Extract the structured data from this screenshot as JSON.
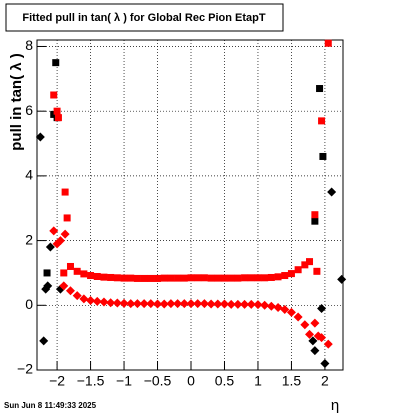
{
  "chart_data": {
    "type": "scatter",
    "title": "Fitted pull in tan( λ ) for Global Rec Pion EtapT",
    "y_label": "pull in tan( λ )",
    "x_label": "η",
    "timestamp": "Sun Jun  8 11:49:33 2025",
    "xlim": [
      -2.3,
      2.27
    ],
    "ylim": [
      -2,
      8.2
    ],
    "xticks": [
      {
        "value": -2,
        "label": "−2"
      },
      {
        "value": -1.5,
        "label": "−1.5"
      },
      {
        "value": -1,
        "label": "−1"
      },
      {
        "value": -0.5,
        "label": "−0.5"
      },
      0,
      0.5,
      1,
      1.5,
      2
    ],
    "yticks": [
      {
        "value": -2,
        "label": "−2"
      },
      0,
      2,
      4,
      6,
      8
    ],
    "grid": true,
    "series": [
      {
        "color": "#000000",
        "marker": "square",
        "x": [
          -2.15,
          -2.05,
          -2.02,
          -2.0,
          1.85,
          1.92,
          1.97
        ],
        "values": [
          1.0,
          5.9,
          7.5,
          5.8,
          2.6,
          6.7,
          4.6
        ]
      },
      {
        "color": "#000000",
        "marker": "diamond",
        "x": [
          -2.25,
          -2.2,
          -2.17,
          -2.14,
          -2.1,
          -1.95,
          1.82,
          1.85,
          1.95,
          2.0,
          2.1,
          2.25
        ],
        "values": [
          5.2,
          -1.1,
          0.5,
          0.6,
          1.8,
          0.5,
          -1.1,
          -1.4,
          -0.1,
          -1.8,
          3.5,
          0.8
        ]
      },
      {
        "color": "#ff0000",
        "marker": "square",
        "x": [
          -2.05,
          -2.0,
          -1.98,
          -1.88,
          -1.85,
          -1.9,
          -1.8,
          -1.7,
          -1.6,
          -1.5,
          -1.4,
          -1.3,
          -1.2,
          -1.1,
          -1.0,
          -0.9,
          -0.8,
          -0.7,
          -0.6,
          -0.5,
          -0.4,
          -0.3,
          -0.2,
          -0.1,
          0,
          0.1,
          0.2,
          0.3,
          0.4,
          0.5,
          0.6,
          0.7,
          0.8,
          0.9,
          1.0,
          1.1,
          1.2,
          1.3,
          1.4,
          1.5,
          1.6,
          1.7,
          1.77,
          1.85,
          1.88,
          1.95,
          2.05
        ],
        "values": [
          6.5,
          6.0,
          5.8,
          3.5,
          2.7,
          1.0,
          1.2,
          1.05,
          0.97,
          0.92,
          0.89,
          0.87,
          0.86,
          0.85,
          0.84,
          0.84,
          0.83,
          0.83,
          0.83,
          0.83,
          0.84,
          0.84,
          0.84,
          0.84,
          0.85,
          0.85,
          0.85,
          0.84,
          0.84,
          0.84,
          0.84,
          0.84,
          0.85,
          0.85,
          0.85,
          0.85,
          0.86,
          0.88,
          0.92,
          0.98,
          1.1,
          1.25,
          1.35,
          2.8,
          1.05,
          5.7,
          8.1
        ]
      },
      {
        "color": "#ff0000",
        "marker": "diamond",
        "x": [
          -2.05,
          -2.0,
          -1.95,
          -1.88,
          -1.9,
          -1.8,
          -1.7,
          -1.6,
          -1.5,
          -1.4,
          -1.3,
          -1.2,
          -1.1,
          -1.0,
          -0.9,
          -0.8,
          -0.7,
          -0.6,
          -0.5,
          -0.4,
          -0.3,
          -0.2,
          -0.1,
          0,
          0.1,
          0.2,
          0.3,
          0.4,
          0.5,
          0.6,
          0.7,
          0.8,
          0.9,
          1.0,
          1.1,
          1.2,
          1.3,
          1.4,
          1.5,
          1.6,
          1.7,
          1.77,
          1.85,
          1.9,
          1.95,
          2.05
        ],
        "values": [
          2.3,
          1.9,
          2.0,
          2.2,
          0.6,
          0.45,
          0.3,
          0.2,
          0.15,
          0.12,
          0.1,
          0.08,
          0.07,
          0.06,
          0.05,
          0.05,
          0.05,
          0.05,
          0.04,
          0.04,
          0.05,
          0.05,
          0.05,
          0.05,
          0.05,
          0.05,
          0.04,
          0.04,
          0.04,
          0.03,
          0.03,
          0.03,
          0.03,
          0.02,
          0.0,
          -0.03,
          -0.07,
          -0.13,
          -0.22,
          -0.36,
          -0.6,
          -0.9,
          -0.55,
          -0.95,
          -1.0,
          -1.2
        ]
      }
    ]
  }
}
